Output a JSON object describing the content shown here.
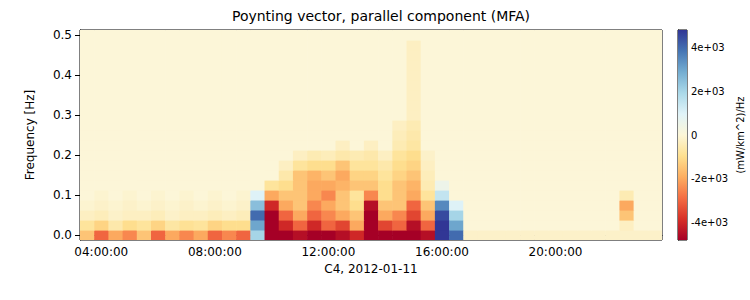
{
  "chart_data": {
    "type": "heatmap",
    "title": "Poynting vector, parallel component (MFA)",
    "xlabel": "C4, 2012-01-11",
    "ylabel": "Frequency [Hz]",
    "x": [
      3.5,
      4.0,
      4.5,
      5.0,
      5.5,
      6.0,
      6.5,
      7.0,
      7.5,
      8.0,
      8.5,
      9.0,
      9.5,
      10.0,
      10.5,
      11.0,
      11.5,
      12.0,
      12.5,
      13.0,
      13.5,
      14.0,
      14.5,
      15.0,
      15.5,
      16.0,
      16.5,
      17.0,
      17.5,
      18.0,
      18.5,
      19.0,
      19.5,
      20.0,
      20.5,
      21.0,
      21.5,
      22.0,
      22.5,
      23.0,
      23.5
    ],
    "y": [
      0,
      0.025,
      0.05,
      0.075,
      0.1,
      0.125,
      0.15,
      0.175,
      0.2,
      0.225,
      0.25,
      0.275,
      0.3,
      0.325,
      0.35,
      0.375,
      0.4,
      0.425,
      0.45,
      0.475,
      0.5
    ],
    "values": [
      [
        -1500,
        -3000,
        -2000,
        -2500,
        -1500,
        -3000,
        -2000,
        -2500,
        -2000,
        -3000,
        -2500,
        -3000,
        2000,
        -5000,
        -5000,
        -4500,
        -5000,
        -5000,
        -4500,
        -4000,
        -5000,
        -5000,
        -5000,
        -5000,
        -4500,
        5000,
        4000,
        -200,
        -200,
        -200,
        -200,
        -200,
        -200,
        -200,
        -200,
        -200,
        -200,
        -200,
        -200,
        -200,
        -200
      ],
      [
        -800,
        -1200,
        -600,
        -1000,
        -800,
        -1200,
        -700,
        -900,
        -800,
        -1200,
        -1000,
        -1000,
        3000,
        -5000,
        -4000,
        -3000,
        -4000,
        -3000,
        -3500,
        -2000,
        -5000,
        -3500,
        -3000,
        -4500,
        -3000,
        5000,
        3000,
        0,
        0,
        0,
        0,
        0,
        0,
        0,
        0,
        0,
        0,
        0,
        -300,
        0,
        0
      ],
      [
        -300,
        -400,
        -200,
        -300,
        -300,
        -400,
        -200,
        -300,
        -300,
        -400,
        -300,
        -400,
        4000,
        -5000,
        -3000,
        -2000,
        -3000,
        -2500,
        -2000,
        -1500,
        -5000,
        -2000,
        -2500,
        -3500,
        -2000,
        4500,
        2000,
        0,
        0,
        0,
        0,
        0,
        0,
        0,
        0,
        0,
        0,
        0,
        -1500,
        0,
        0
      ],
      [
        -100,
        -200,
        -100,
        -200,
        -100,
        -200,
        -100,
        -200,
        -100,
        -200,
        -100,
        -200,
        2500,
        -4000,
        -2000,
        -1500,
        -2500,
        -2000,
        -1500,
        -1000,
        -4500,
        -1500,
        -1500,
        -3000,
        -1500,
        3500,
        1000,
        0,
        0,
        0,
        0,
        0,
        0,
        0,
        0,
        0,
        0,
        0,
        -2000,
        0,
        0
      ],
      [
        0,
        -100,
        0,
        -100,
        0,
        -100,
        0,
        -100,
        0,
        -100,
        0,
        -100,
        1000,
        -2000,
        -1500,
        -1500,
        -2000,
        -2500,
        -1500,
        -800,
        -2500,
        -1000,
        -1500,
        -2000,
        -800,
        1500,
        0,
        0,
        0,
        0,
        0,
        0,
        0,
        0,
        0,
        0,
        0,
        0,
        -500,
        0,
        0
      ],
      [
        0,
        0,
        0,
        0,
        0,
        0,
        0,
        0,
        0,
        0,
        0,
        0,
        0,
        -800,
        -1000,
        -1500,
        -2000,
        -2000,
        -1800,
        -1500,
        -1500,
        -1000,
        -1500,
        -1800,
        -500,
        500,
        0,
        0,
        0,
        0,
        0,
        0,
        0,
        0,
        0,
        0,
        0,
        0,
        0,
        0,
        0
      ],
      [
        0,
        0,
        0,
        0,
        0,
        0,
        0,
        0,
        0,
        0,
        0,
        0,
        0,
        0,
        -600,
        -1500,
        -1800,
        -1500,
        -2000,
        -1200,
        -1200,
        -800,
        -1200,
        -1500,
        -400,
        0,
        0,
        0,
        0,
        0,
        0,
        0,
        0,
        0,
        0,
        0,
        0,
        0,
        0,
        0,
        0
      ],
      [
        0,
        0,
        0,
        0,
        0,
        0,
        0,
        0,
        0,
        0,
        0,
        0,
        0,
        0,
        -300,
        -800,
        -1000,
        -1000,
        -1500,
        -800,
        -800,
        -600,
        -1000,
        -1200,
        -300,
        0,
        0,
        0,
        0,
        0,
        0,
        0,
        0,
        0,
        0,
        0,
        0,
        0,
        0,
        0,
        0
      ],
      [
        0,
        0,
        0,
        0,
        0,
        0,
        0,
        0,
        0,
        0,
        0,
        0,
        0,
        0,
        0,
        -300,
        -500,
        -400,
        -600,
        -500,
        -600,
        -300,
        -800,
        -1000,
        -200,
        0,
        0,
        0,
        0,
        0,
        0,
        0,
        0,
        0,
        0,
        0,
        0,
        0,
        0,
        0,
        0
      ],
      [
        0,
        0,
        0,
        0,
        0,
        0,
        0,
        0,
        0,
        0,
        0,
        0,
        0,
        0,
        0,
        0,
        0,
        0,
        -300,
        0,
        -300,
        0,
        -500,
        -700,
        0,
        0,
        0,
        0,
        0,
        0,
        0,
        0,
        0,
        0,
        0,
        0,
        0,
        0,
        0,
        0,
        0
      ],
      [
        0,
        0,
        0,
        0,
        0,
        0,
        0,
        0,
        0,
        0,
        0,
        0,
        0,
        0,
        0,
        0,
        0,
        0,
        0,
        0,
        0,
        0,
        -400,
        -600,
        0,
        0,
        0,
        0,
        0,
        0,
        0,
        0,
        0,
        0,
        0,
        0,
        0,
        0,
        0,
        0,
        0
      ],
      [
        0,
        0,
        0,
        0,
        0,
        0,
        0,
        0,
        0,
        0,
        0,
        0,
        0,
        0,
        0,
        0,
        0,
        0,
        0,
        0,
        0,
        0,
        -300,
        -500,
        0,
        0,
        0,
        0,
        0,
        0,
        0,
        0,
        0,
        0,
        0,
        0,
        0,
        0,
        0,
        0,
        0
      ],
      [
        0,
        0,
        0,
        0,
        0,
        0,
        0,
        0,
        0,
        0,
        0,
        0,
        0,
        0,
        0,
        0,
        0,
        0,
        0,
        0,
        0,
        0,
        0,
        -300,
        0,
        0,
        0,
        0,
        0,
        0,
        0,
        0,
        0,
        0,
        0,
        0,
        0,
        0,
        0,
        0,
        0
      ],
      [
        0,
        0,
        0,
        0,
        0,
        0,
        0,
        0,
        0,
        0,
        0,
        0,
        0,
        0,
        0,
        0,
        0,
        0,
        0,
        0,
        0,
        0,
        0,
        -300,
        0,
        0,
        0,
        0,
        0,
        0,
        0,
        0,
        0,
        0,
        0,
        0,
        0,
        0,
        0,
        0,
        0
      ],
      [
        0,
        0,
        0,
        0,
        0,
        0,
        0,
        0,
        0,
        0,
        0,
        0,
        0,
        0,
        0,
        0,
        0,
        0,
        0,
        0,
        0,
        0,
        0,
        -300,
        0,
        0,
        0,
        0,
        0,
        0,
        0,
        0,
        0,
        0,
        0,
        0,
        0,
        0,
        0,
        0,
        0
      ],
      [
        0,
        0,
        0,
        0,
        0,
        0,
        0,
        0,
        0,
        0,
        0,
        0,
        0,
        0,
        0,
        0,
        0,
        0,
        0,
        0,
        0,
        0,
        0,
        -300,
        0,
        0,
        0,
        0,
        0,
        0,
        0,
        0,
        0,
        0,
        0,
        0,
        0,
        0,
        0,
        0,
        0
      ],
      [
        0,
        0,
        0,
        0,
        0,
        0,
        0,
        0,
        0,
        0,
        0,
        0,
        0,
        0,
        0,
        0,
        0,
        0,
        0,
        0,
        0,
        0,
        0,
        -300,
        0,
        0,
        0,
        0,
        0,
        0,
        0,
        0,
        0,
        0,
        0,
        0,
        0,
        0,
        0,
        0,
        0
      ],
      [
        0,
        0,
        0,
        0,
        0,
        0,
        0,
        0,
        0,
        0,
        0,
        0,
        0,
        0,
        0,
        0,
        0,
        0,
        0,
        0,
        0,
        0,
        0,
        -300,
        0,
        0,
        0,
        0,
        0,
        0,
        0,
        0,
        0,
        0,
        0,
        0,
        0,
        0,
        0,
        0,
        0
      ],
      [
        0,
        0,
        0,
        0,
        0,
        0,
        0,
        0,
        0,
        0,
        0,
        0,
        0,
        0,
        0,
        0,
        0,
        0,
        0,
        0,
        0,
        0,
        0,
        -300,
        0,
        0,
        0,
        0,
        0,
        0,
        0,
        0,
        0,
        0,
        0,
        0,
        0,
        0,
        0,
        0,
        0
      ],
      [
        0,
        0,
        0,
        0,
        0,
        0,
        0,
        0,
        0,
        0,
        0,
        0,
        0,
        0,
        0,
        0,
        0,
        0,
        0,
        0,
        0,
        0,
        0,
        -300,
        0,
        0,
        0,
        0,
        0,
        0,
        0,
        0,
        0,
        0,
        0,
        0,
        0,
        0,
        0,
        0,
        0
      ],
      [
        0,
        0,
        0,
        0,
        0,
        0,
        0,
        0,
        0,
        0,
        0,
        0,
        0,
        0,
        0,
        0,
        0,
        0,
        0,
        0,
        0,
        0,
        0,
        0,
        0,
        0,
        0,
        0,
        0,
        0,
        0,
        0,
        0,
        0,
        0,
        0,
        0,
        0,
        0,
        0,
        0
      ]
    ],
    "xlim": [
      3.25,
      23.75
    ],
    "xticks": [
      {
        "value": 4,
        "label": "04:00:00"
      },
      {
        "value": 8,
        "label": "08:00:00"
      },
      {
        "value": 12,
        "label": "12:00:00"
      },
      {
        "value": 16,
        "label": "16:00:00"
      },
      {
        "value": 20,
        "label": "20:00:00"
      }
    ],
    "ylim": [
      -0.0125,
      0.5125
    ],
    "yticks": [
      {
        "value": 0,
        "label": "0.0"
      },
      0.1,
      0.2,
      0.3,
      0.4,
      0.5
    ],
    "colorbar": {
      "label": "(mW/km^2)/Hz",
      "range": [
        -4800,
        4800
      ],
      "ticks": [
        {
          "value": -4000,
          "label": "-4e+03"
        },
        {
          "value": -2000,
          "label": "-2e+03"
        },
        0,
        {
          "value": 2000,
          "label": "2e+03"
        },
        {
          "value": 4000,
          "label": "4e+03"
        }
      ],
      "colors": [
        "#a50026",
        "#d73027",
        "#f46d43",
        "#fdae61",
        "#fee090",
        "#fcf6d8",
        "#e0f3f8",
        "#abd9e9",
        "#74add1",
        "#4575b4",
        "#313695"
      ]
    }
  }
}
